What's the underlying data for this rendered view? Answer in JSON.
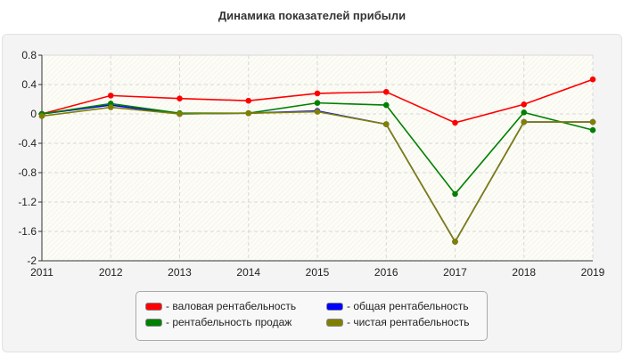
{
  "chart_data": {
    "type": "line",
    "title": "Динамика показателей прибыли",
    "categories": [
      "2011",
      "2012",
      "2013",
      "2014",
      "2015",
      "2016",
      "2017",
      "2018",
      "2019"
    ],
    "ylim": [
      -2,
      0.8
    ],
    "yticks": [
      "0.8",
      "0.4",
      "0",
      "-0.4",
      "-0.8",
      "-1.2",
      "-1.6",
      "-2"
    ],
    "grid": true,
    "legend_position": "bottom",
    "series": [
      {
        "name": "- валовая рентабельность",
        "color": "#ff0000",
        "values": [
          0.0,
          0.25,
          0.21,
          0.18,
          0.28,
          0.3,
          -0.12,
          0.13,
          0.47
        ]
      },
      {
        "name": "- общая рентабельность",
        "color": "#0000ff",
        "values": [
          0.0,
          0.12,
          0.0,
          0.01,
          0.04,
          -0.14,
          -1.74,
          -0.11,
          -0.11
        ]
      },
      {
        "name": "- рентабельность продаж",
        "color": "#008000",
        "values": [
          0.0,
          0.14,
          0.01,
          0.01,
          0.15,
          0.12,
          -1.09,
          0.02,
          -0.22
        ]
      },
      {
        "name": "- чистая рентабельность",
        "color": "#808000",
        "values": [
          -0.03,
          0.09,
          0.0,
          0.01,
          0.03,
          -0.14,
          -1.74,
          -0.11,
          -0.11
        ]
      }
    ]
  }
}
